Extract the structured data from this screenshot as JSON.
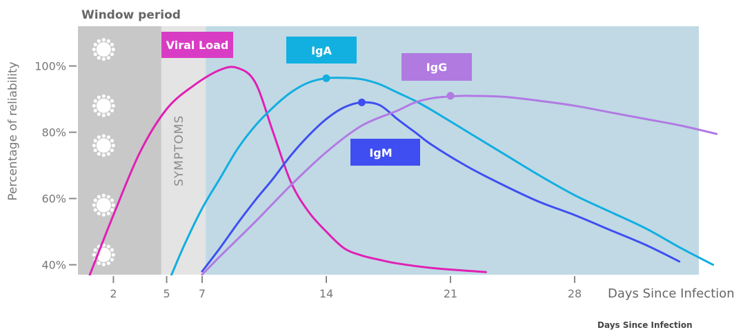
{
  "chart_data": {
    "type": "line",
    "title": "",
    "xlabel": "Days Since Infection",
    "ylabel": "Percentage of reliability",
    "x_ticks": [
      2,
      5,
      7,
      14,
      21,
      28
    ],
    "y_ticks": [
      {
        "value": 40,
        "label": "40%"
      },
      {
        "value": 60,
        "label": "60%"
      },
      {
        "value": 80,
        "label": "80%"
      },
      {
        "value": 100,
        "label": "100%"
      }
    ],
    "xlim": [
      0,
      35
    ],
    "ylim": [
      37,
      112
    ],
    "regions": [
      {
        "label": "Window period",
        "x_start": 0,
        "x_end": 4.7,
        "color": "#c8c8c8"
      },
      {
        "label": "SYMPTOMS",
        "x_start": 4.7,
        "x_end": 7.2,
        "color": "#e4e4e4"
      },
      {
        "label": "",
        "x_start": 7.2,
        "x_end": 35,
        "color": "#c0d9e5"
      }
    ],
    "window_marker_y": [
      105,
      88,
      76,
      58,
      43
    ],
    "series": [
      {
        "name": "Viral Load",
        "color": "#e020b4",
        "points": [
          [
            0.6,
            36
          ],
          [
            2,
            55
          ],
          [
            3.5,
            74
          ],
          [
            5,
            87
          ],
          [
            6.5,
            94
          ],
          [
            8,
            98.8
          ],
          [
            9,
            99.4
          ],
          [
            10,
            95
          ],
          [
            11,
            80
          ],
          [
            12,
            65
          ],
          [
            13,
            56
          ],
          [
            14,
            50
          ],
          [
            15,
            45
          ],
          [
            16,
            42.8
          ],
          [
            17,
            41.5
          ],
          [
            18,
            40.4
          ],
          [
            20,
            39
          ],
          [
            23,
            37.8
          ]
        ],
        "marker": null
      },
      {
        "name": "IgA",
        "color": "#11aee0",
        "points": [
          [
            5.2,
            36
          ],
          [
            6,
            46
          ],
          [
            7,
            57
          ],
          [
            8,
            66
          ],
          [
            9,
            75
          ],
          [
            10,
            82
          ],
          [
            11,
            87.5
          ],
          [
            12,
            92
          ],
          [
            13,
            95
          ],
          [
            14,
            96.3
          ],
          [
            15,
            96.4
          ],
          [
            16,
            96
          ],
          [
            17,
            94.5
          ],
          [
            18,
            92
          ],
          [
            19,
            89.5
          ],
          [
            20,
            86.5
          ],
          [
            22,
            80
          ],
          [
            24,
            73.5
          ],
          [
            26,
            67
          ],
          [
            28,
            61
          ],
          [
            30,
            56
          ],
          [
            32,
            51
          ],
          [
            34,
            45
          ],
          [
            35.8,
            40
          ]
        ],
        "marker": [
          14,
          96.3
        ]
      },
      {
        "name": "IgM",
        "color": "#3f4ef0",
        "points": [
          [
            7,
            38
          ],
          [
            8,
            45
          ],
          [
            9,
            52.5
          ],
          [
            10,
            59.5
          ],
          [
            11,
            66
          ],
          [
            12,
            73
          ],
          [
            13,
            79
          ],
          [
            14,
            84
          ],
          [
            15,
            87.5
          ],
          [
            16,
            89
          ],
          [
            17,
            88.2
          ],
          [
            18,
            84
          ],
          [
            19,
            80
          ],
          [
            20,
            76
          ],
          [
            22,
            69.5
          ],
          [
            24,
            64
          ],
          [
            26,
            59
          ],
          [
            28,
            55
          ],
          [
            30,
            50.5
          ],
          [
            32,
            46
          ],
          [
            33.9,
            41
          ]
        ],
        "marker": [
          16,
          89
        ]
      },
      {
        "name": "IgG",
        "color": "#b17ae3",
        "points": [
          [
            7,
            37
          ],
          [
            8,
            42.5
          ],
          [
            10,
            53
          ],
          [
            12,
            64
          ],
          [
            14,
            74
          ],
          [
            16,
            82
          ],
          [
            18,
            86.5
          ],
          [
            19,
            89
          ],
          [
            20,
            90.3
          ],
          [
            21,
            90.8
          ],
          [
            22,
            91
          ],
          [
            24,
            90.7
          ],
          [
            26,
            89.5
          ],
          [
            28,
            88
          ],
          [
            30,
            86
          ],
          [
            32,
            84
          ],
          [
            34,
            82
          ],
          [
            36,
            79.5
          ]
        ],
        "marker": [
          21,
          91
        ]
      }
    ]
  },
  "labels": {
    "window_period": "Window period",
    "symptoms": "SYMPTOMS",
    "viral_load": "Viral Load",
    "iga": "IgA",
    "igg": "IgG",
    "igm": "IgM",
    "footnote": "Days Since Infection"
  },
  "colors": {
    "viral_load_badge": "#d93cc4",
    "iga_badge": "#12b0e0",
    "igg_badge": "#b07ae0",
    "igm_badge": "#3f4ef0",
    "virus_icon": "#ffffff"
  }
}
